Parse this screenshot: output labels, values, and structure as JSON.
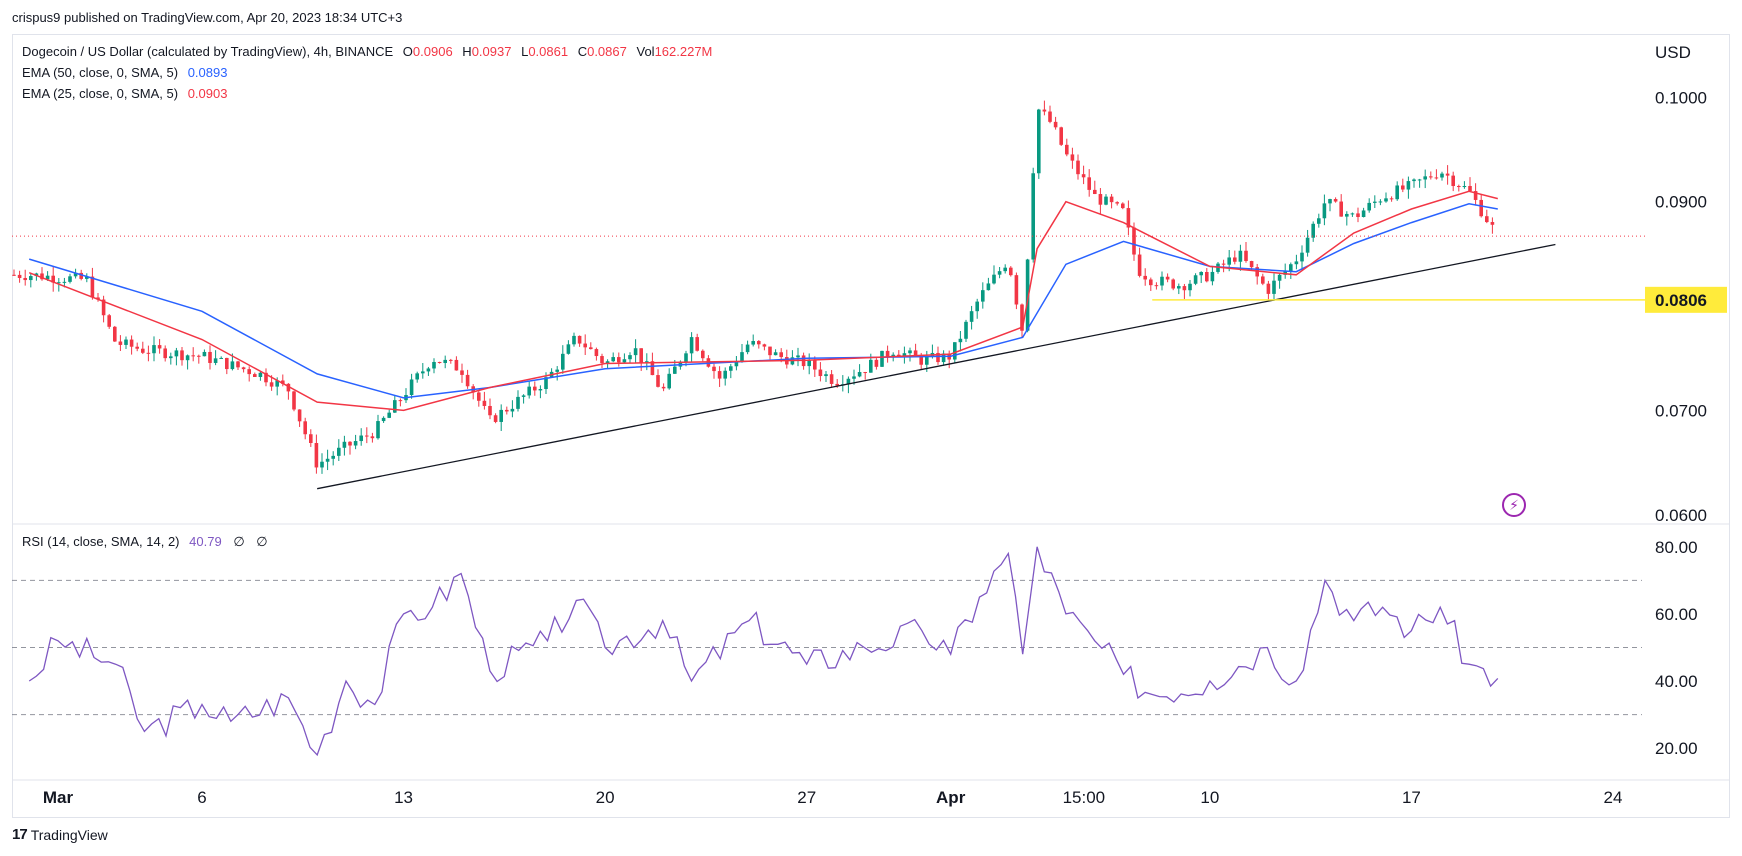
{
  "caption": "crispus9 published on TradingView.com, Apr 20, 2023 18:34 UTC+3",
  "brand": {
    "logo": "17",
    "name": "TradingView"
  },
  "currency": "USD",
  "legend": {
    "symbol": "Dogecoin / US Dollar (calculated by TradingView), 4h, BINANCE",
    "o_label": "O",
    "o_value": "0.0906",
    "h_label": "H",
    "h_value": "0.0937",
    "l_label": "L",
    "l_value": "0.0861",
    "c_label": "C",
    "c_value": "0.0867",
    "vol_label": "Vol",
    "vol_value": "162.227M",
    "ema50_label": "EMA (50, close, 0, SMA, 5)",
    "ema50_value": "0.0893",
    "ema25_label": "EMA (25, close, 0, SMA, 5)",
    "ema25_value": "0.0903",
    "rsi_label": "RSI (14, close, SMA, 14, 2)",
    "rsi_value": "40.79",
    "rsi_sym1": "∅",
    "rsi_sym2": "∅"
  },
  "price_axis": {
    "ticks": [
      "0.1000",
      "0.0900",
      "0.0700",
      "0.0600"
    ],
    "highlight_label": "0.0806"
  },
  "rsi_axis": {
    "ticks": [
      "80.00",
      "60.00",
      "40.00",
      "20.00"
    ]
  },
  "x_axis": {
    "ticks": [
      "Mar",
      "6",
      "13",
      "20",
      "27",
      "Apr",
      "15:00",
      "10",
      "17",
      "24"
    ]
  },
  "colors": {
    "up": "#089981",
    "down": "#f23645",
    "ema50": "#2962ff",
    "ema25": "#f23645",
    "rsi": "#7e57c2",
    "support": "#ffeb3b",
    "trend": "#131722",
    "bolt": "#9c27b0"
  },
  "bolt_icon": "lightning-icon",
  "chart_data": [
    {
      "type": "candlestick",
      "title": "Dogecoin / US Dollar (calculated by TradingView), 4h, BINANCE",
      "ylabel": "USD",
      "ylim": [
        0.0595,
        0.1055
      ],
      "last_price": 0.0867,
      "support_level": 0.0806,
      "trendline": {
        "from": [
          "Mar 10",
          0.0625
        ],
        "to": [
          "Apr 22",
          0.0859
        ]
      },
      "price_path": [
        [
          "Feb 28",
          0.083
        ],
        [
          "Mar 2",
          0.0825
        ],
        [
          "Mar 3",
          0.0765
        ],
        [
          "Mar 4",
          0.0758
        ],
        [
          "Mar 6",
          0.0752
        ],
        [
          "Mar 8",
          0.0735
        ],
        [
          "Mar 9",
          0.072
        ],
        [
          "Mar 10",
          0.0648
        ],
        [
          "Mar 11",
          0.0665
        ],
        [
          "Mar 12",
          0.068
        ],
        [
          "Mar 13",
          0.0715
        ],
        [
          "Mar 14",
          0.075
        ],
        [
          "Mar 15",
          0.074
        ],
        [
          "Mar 16",
          0.069
        ],
        [
          "Mar 18",
          0.073
        ],
        [
          "Mar 19",
          0.077
        ],
        [
          "Mar 20",
          0.0745
        ],
        [
          "Mar 21",
          0.076
        ],
        [
          "Mar 22",
          0.0718
        ],
        [
          "Mar 23",
          0.077
        ],
        [
          "Mar 24",
          0.073
        ],
        [
          "Mar 25",
          0.0765
        ],
        [
          "Mar 26",
          0.0752
        ],
        [
          "Mar 27",
          0.0745
        ],
        [
          "Mar 28",
          0.0728
        ],
        [
          "Mar 29",
          0.074
        ],
        [
          "Mar 30",
          0.0758
        ],
        [
          "Mar 31",
          0.0748
        ],
        [
          "Apr 1",
          0.0752
        ],
        [
          "Apr 2",
          0.0808
        ],
        [
          "Apr 3",
          0.0845
        ],
        [
          "Apr 3 12:00",
          0.0775
        ],
        [
          "Apr 4",
          0.099
        ],
        [
          "Apr 4 12:00",
          0.0975
        ],
        [
          "Apr 5",
          0.0945
        ],
        [
          "Apr 6",
          0.0905
        ],
        [
          "Apr 7",
          0.089
        ],
        [
          "Apr 7 12:00",
          0.0835
        ],
        [
          "Apr 8",
          0.0825
        ],
        [
          "Apr 9",
          0.082
        ],
        [
          "Apr 10",
          0.083
        ],
        [
          "Apr 11",
          0.085
        ],
        [
          "Apr 12",
          0.0815
        ],
        [
          "Apr 13",
          0.0845
        ],
        [
          "Apr 14",
          0.09
        ],
        [
          "Apr 15",
          0.0885
        ],
        [
          "Apr 16",
          0.0905
        ],
        [
          "Apr 17",
          0.0915
        ],
        [
          "Apr 18",
          0.093
        ],
        [
          "Apr 19",
          0.091
        ],
        [
          "Apr 20",
          0.0867
        ]
      ],
      "ema50_path": [
        [
          "Feb 28",
          0.0845
        ],
        [
          "Mar 6",
          0.0795
        ],
        [
          "Mar 10",
          0.0735
        ],
        [
          "Mar 13",
          0.0712
        ],
        [
          "Mar 16",
          0.0722
        ],
        [
          "Mar 20",
          0.074
        ],
        [
          "Mar 27",
          0.075
        ],
        [
          "Apr 1",
          0.0752
        ],
        [
          "Apr 3 12:00",
          0.077
        ],
        [
          "Apr 5",
          0.084
        ],
        [
          "Apr 7",
          0.0862
        ],
        [
          "Apr 10",
          0.0838
        ],
        [
          "Apr 13",
          0.0833
        ],
        [
          "Apr 15",
          0.086
        ],
        [
          "Apr 17",
          0.088
        ],
        [
          "Apr 19",
          0.0898
        ],
        [
          "Apr 20",
          0.0893
        ]
      ],
      "ema25_path": [
        [
          "Feb 28",
          0.0832
        ],
        [
          "Mar 6",
          0.0768
        ],
        [
          "Mar 10",
          0.0708
        ],
        [
          "Mar 13",
          0.07
        ],
        [
          "Mar 16",
          0.0722
        ],
        [
          "Mar 20",
          0.0745
        ],
        [
          "Mar 27",
          0.0748
        ],
        [
          "Apr 1",
          0.0754
        ],
        [
          "Apr 3 12:00",
          0.078
        ],
        [
          "Apr 4",
          0.0855
        ],
        [
          "Apr 5",
          0.09
        ],
        [
          "Apr 7",
          0.088
        ],
        [
          "Apr 10",
          0.0838
        ],
        [
          "Apr 13",
          0.083
        ],
        [
          "Apr 15",
          0.087
        ],
        [
          "Apr 17",
          0.0893
        ],
        [
          "Apr 19",
          0.091
        ],
        [
          "Apr 20",
          0.0903
        ]
      ]
    },
    {
      "type": "line",
      "title": "RSI (14, close, SMA, 14, 2)",
      "ylim": [
        12,
        85
      ],
      "bands": [
        30,
        50,
        70
      ],
      "x": [
        "Feb 28",
        "Mar 1",
        "Mar 3",
        "Mar 4",
        "Mar 6",
        "Mar 7",
        "Mar 9",
        "Mar 10",
        "Mar 11",
        "Mar 12",
        "Mar 13",
        "Mar 14",
        "Mar 15",
        "Mar 16",
        "Mar 18",
        "Mar 19",
        "Mar 20",
        "Mar 22",
        "Mar 23",
        "Mar 25",
        "Mar 27",
        "Mar 29",
        "Mar 31",
        "Apr 1",
        "Apr 2",
        "Apr 3",
        "Apr 3 12:00",
        "Apr 4",
        "Apr 5",
        "Apr 6",
        "Apr 7",
        "Apr 8",
        "Apr 10",
        "Apr 12",
        "Apr 13",
        "Apr 14",
        "Apr 15",
        "Apr 16",
        "Apr 17",
        "Apr 18",
        "Apr 19",
        "Apr 20"
      ],
      "values": [
        40,
        52,
        45,
        25,
        33,
        28,
        35,
        18,
        40,
        33,
        60,
        62,
        72,
        43,
        52,
        64,
        50,
        58,
        40,
        58,
        45,
        50,
        55,
        48,
        65,
        78,
        48,
        80,
        60,
        52,
        42,
        36,
        40,
        50,
        40,
        70,
        58,
        62,
        55,
        62,
        45,
        40.79
      ]
    }
  ]
}
